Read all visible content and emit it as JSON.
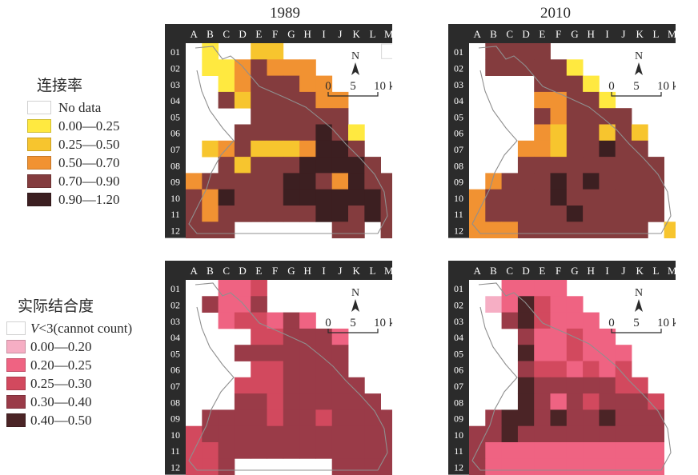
{
  "years": [
    "1989",
    "2010"
  ],
  "columns": [
    "A",
    "B",
    "C",
    "D",
    "E",
    "F",
    "G",
    "H",
    "I",
    "J",
    "K",
    "L",
    "M"
  ],
  "rows": [
    "01",
    "02",
    "03",
    "04",
    "05",
    "06",
    "07",
    "08",
    "09",
    "10",
    "11",
    "12"
  ],
  "scalebar": {
    "ticks": [
      "0",
      "5",
      "10 km"
    ],
    "north": "N"
  },
  "legend_top": {
    "title": "连接率",
    "items": [
      {
        "label": "No data",
        "color": "#ffffff"
      },
      {
        "label": "0.00—0.25",
        "color": "#ffe940"
      },
      {
        "label": "0.25—0.50",
        "color": "#f7c52e"
      },
      {
        "label": "0.50—0.70",
        "color": "#f19232"
      },
      {
        "label": "0.70—0.90",
        "color": "#843c3e"
      },
      {
        "label": "0.90—1.20",
        "color": "#3c1f21"
      }
    ]
  },
  "legend_bottom": {
    "title": "实际结合度",
    "items": [
      {
        "label_italic": "V",
        "label": "<3(cannot count)",
        "color": "#ffffff"
      },
      {
        "label": "0.00—0.20",
        "color": "#f6aec4"
      },
      {
        "label": "0.20—0.25",
        "color": "#ef6382"
      },
      {
        "label": "0.25—0.30",
        "color": "#d2495e"
      },
      {
        "label": "0.30—0.40",
        "color": "#9a3b48"
      },
      {
        "label": "0.40—0.50",
        "color": "#4b2426"
      }
    ]
  },
  "maps": [
    {
      "id": "connect-1989",
      "grid": [
        "010022000000.",
        "0113433300000",
        "0013444330000",
        "0042444433000",
        "0000444444000",
        "0004444454100",
        "0234222355400",
        "0042444555540",
        "3444445543544",
        "4354445555554",
        "4344444455454",
        "4440000004404"
      ]
    },
    {
      "id": "connect-2010",
      "grid": [
        "0444400000000",
        "0444441000000",
        "0000444100000",
        "0000334410000",
        "0000434444000",
        "0000324424200",
        "0003324454400",
        "0004444444440",
        "0344454544440",
        "3444454444440",
        "3444445444440",
        "3334444444402"
      ]
    },
    {
      "id": "degree-1989",
      "grid": [
        "0022300000000",
        "0422400000000",
        "0023324200000",
        "0000334442000",
        "0004444444000",
        "0000334444000",
        "0003334444400",
        "0004434444440",
        "0444434434444",
        "3444444444444",
        "3344444444444",
        "3340000004444"
      ]
    },
    {
      "id": "degree-2010",
      "grid": [
        "0022220000000",
        "0125322000000",
        "0045322200000",
        "0004223220000",
        "0005223222000",
        "0004332323000",
        "0005444443300",
        "0005424344430",
        "0455454454440",
        "4454444444440",
        "4222222222220",
        "4222222222220"
      ]
    }
  ]
}
